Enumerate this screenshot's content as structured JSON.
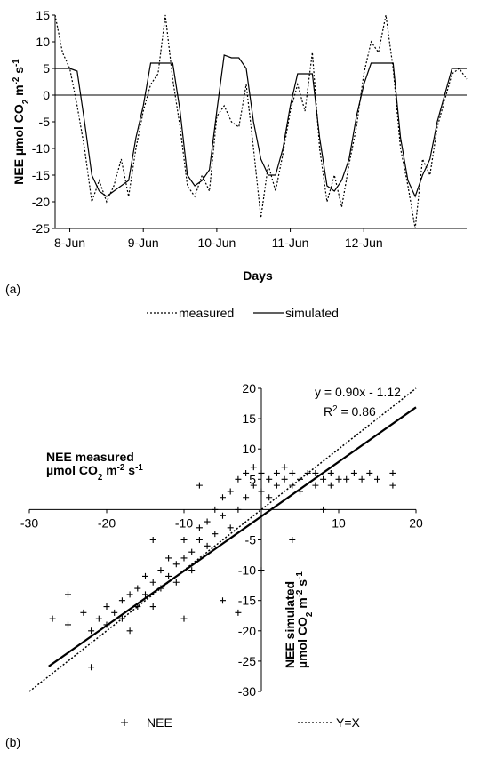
{
  "chart_data": [
    {
      "type": "line",
      "panel": "(a)",
      "x_label": "Days",
      "y_label": [
        {
          "text": "NEE µmol CO"
        },
        {
          "text": "2",
          "shift": "sub"
        },
        {
          "text": " m"
        },
        {
          "text": "-2",
          "shift": "super"
        },
        {
          "text": " s"
        },
        {
          "text": "-1",
          "shift": "super"
        }
      ],
      "x": [
        -0.2,
        -0.1,
        0,
        0.1,
        0.2,
        0.3,
        0.4,
        0.5,
        0.6,
        0.7,
        0.8,
        0.9,
        1.0,
        1.1,
        1.2,
        1.3,
        1.4,
        1.5,
        1.6,
        1.7,
        1.8,
        1.9,
        2.0,
        2.1,
        2.2,
        2.3,
        2.4,
        2.5,
        2.6,
        2.7,
        2.8,
        2.9,
        3.0,
        3.1,
        3.2,
        3.3,
        3.4,
        3.5,
        3.6,
        3.7,
        3.8,
        3.9,
        4.0,
        4.1,
        4.2,
        4.3,
        4.4,
        4.5,
        4.6,
        4.7,
        4.8,
        4.9,
        5.0,
        5.1,
        5.2,
        5.3,
        5.4
      ],
      "xlim": [
        -0.2,
        5.4
      ],
      "xticks": [
        {
          "value": 0,
          "label": "8-Jun"
        },
        {
          "value": 1,
          "label": "9-Jun"
        },
        {
          "value": 2,
          "label": "10-Jun"
        },
        {
          "value": 3,
          "label": "11-Jun"
        },
        {
          "value": 4,
          "label": "12-Jun"
        }
      ],
      "ylim": [
        -25,
        15
      ],
      "yticks": [
        -25,
        -20,
        -15,
        -10,
        -5,
        0,
        5,
        10,
        15
      ],
      "series": [
        {
          "name": "measured",
          "color": "#000000",
          "dash": "dotted",
          "values": [
            15,
            8,
            5,
            -2,
            -10,
            -20,
            -16,
            -20,
            -17,
            -12,
            -19,
            -10,
            -3,
            2,
            4,
            15,
            3,
            -6,
            -17,
            -19,
            -15,
            -18,
            -4,
            -2,
            -5,
            -6,
            2,
            -10,
            -23,
            -13,
            -18,
            -11,
            -3,
            2,
            -3,
            8,
            -10,
            -20,
            -15,
            -21,
            -13,
            -6,
            4,
            10,
            8,
            15,
            5,
            -10,
            -17,
            -25,
            -12,
            -15,
            -6,
            -1,
            4,
            5,
            3
          ]
        },
        {
          "name": "simulated",
          "color": "#000000",
          "dash": "solid",
          "values": [
            5,
            5,
            5,
            4.5,
            -5,
            -15,
            -18,
            -19,
            -18,
            -17,
            -16,
            -8,
            -2,
            6,
            6,
            6,
            6,
            -3,
            -15,
            -17,
            -16,
            -14,
            -3,
            7.5,
            7,
            7,
            5,
            -5,
            -12,
            -15,
            -15,
            -10,
            -2,
            4,
            4,
            4,
            -8,
            -17,
            -18,
            -16,
            -12,
            -4,
            2,
            6,
            6,
            6,
            6,
            -8,
            -16,
            -19,
            -15,
            -12,
            -5,
            0,
            5,
            5,
            5
          ]
        }
      ]
    },
    {
      "type": "scatter",
      "panel": "(b)",
      "x_label": [
        {
          "text": "NEE measured"
        },
        {
          "text": "µmol CO",
          "line": 2
        },
        {
          "text": "2",
          "shift": "sub"
        },
        {
          "text": " m"
        },
        {
          "text": "-2",
          "shift": "super"
        },
        {
          "text": " s"
        },
        {
          "text": "-1",
          "shift": "super"
        }
      ],
      "y_label": [
        {
          "text": "NEE simulated"
        },
        {
          "text": "µmol CO",
          "line": 2
        },
        {
          "text": "2",
          "shift": "sub"
        },
        {
          "text": " m"
        },
        {
          "text": "-2",
          "shift": "super"
        },
        {
          "text": " s"
        },
        {
          "text": "-1",
          "shift": "super"
        }
      ],
      "annotations": [
        [
          {
            "text": "y = 0.90x - 1.12"
          }
        ],
        [
          {
            "text": "R"
          },
          {
            "text": "2",
            "shift": "super"
          },
          {
            "text": " = 0.86"
          }
        ]
      ],
      "xlim": [
        -30,
        20
      ],
      "xticks": [
        -30,
        -20,
        -10,
        10,
        20
      ],
      "ylim": [
        -30,
        20
      ],
      "yticks": [
        -30,
        -25,
        -20,
        -15,
        -10,
        -5,
        5,
        10,
        15,
        20
      ],
      "series": [
        {
          "name": "NEE",
          "kind": "marker",
          "color": "#000000",
          "x": [
            -27,
            -25,
            -23,
            -22,
            -21,
            -20,
            -20,
            -19,
            -18,
            -18,
            -17,
            -17,
            -16,
            -16,
            -15,
            -15,
            -14,
            -14,
            -13,
            -13,
            -12,
            -12,
            -11,
            -11,
            -10,
            -10,
            -9,
            -9,
            -8,
            -8,
            -7,
            -7,
            -6,
            -6,
            -5,
            -5,
            -4,
            -4,
            -3,
            -3,
            -2,
            -2,
            -1,
            -1,
            0,
            0,
            1,
            1,
            2,
            2,
            3,
            3,
            4,
            4,
            5,
            5,
            6,
            7,
            7,
            8,
            9,
            9,
            10,
            11,
            12,
            13,
            14,
            15,
            17,
            17,
            -22,
            -10,
            -5,
            0,
            -3,
            -14,
            -8,
            4,
            8,
            -25
          ],
          "values": [
            -18,
            -19,
            -17,
            -20,
            -18,
            -19,
            -16,
            -17,
            -15,
            -18,
            -14,
            -20,
            -16,
            -13,
            -14,
            -11,
            -12,
            -16,
            -10,
            -13,
            -11,
            -8,
            -9,
            -12,
            -8,
            -5,
            -7,
            -10,
            -5,
            -3,
            -6,
            -2,
            -4,
            0,
            -1,
            2,
            -3,
            3,
            0,
            5,
            2,
            6,
            4,
            7,
            3,
            6,
            5,
            2,
            6,
            4,
            5,
            7,
            4,
            6,
            5,
            3,
            6,
            4,
            6,
            5,
            4,
            6,
            5,
            5,
            6,
            5,
            6,
            5,
            6,
            4,
            -26,
            -18,
            -15,
            -10,
            -17,
            -5,
            4,
            -5,
            0,
            -14
          ]
        },
        {
          "name": "Y=X",
          "kind": "line",
          "dash": "dotted",
          "color": "#000000",
          "x": [
            -30,
            20
          ],
          "values": [
            -30,
            20
          ]
        },
        {
          "kind": "line",
          "dash": "solid",
          "color": "#000000",
          "x": [
            -27.5,
            20
          ],
          "values": [
            -25.87,
            16.88
          ]
        }
      ]
    }
  ]
}
